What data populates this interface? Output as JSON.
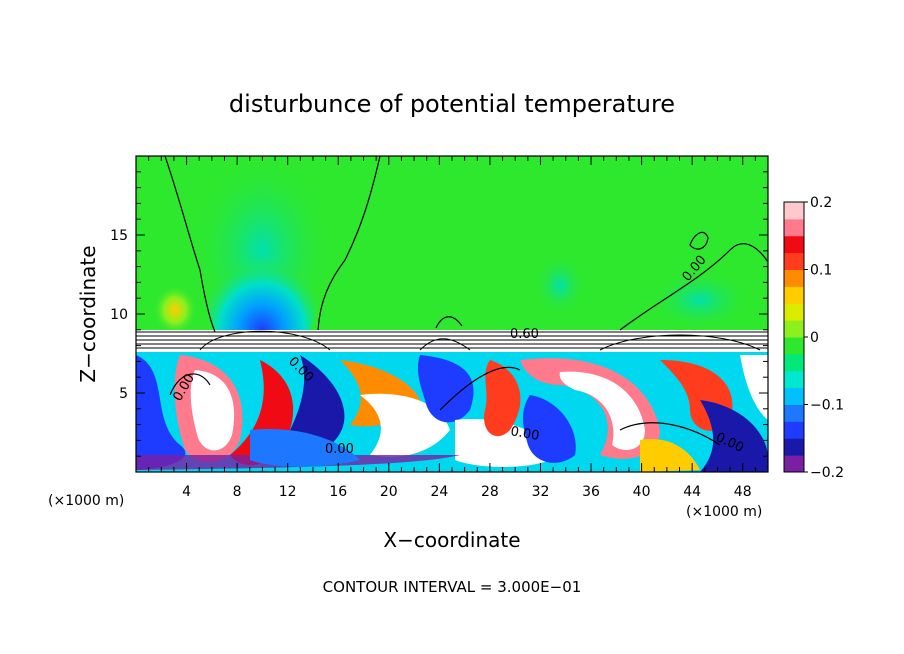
{
  "chart_data": {
    "type": "heatmap",
    "title": "disturbunce of potential temperature",
    "xlabel": "X−coordinate",
    "ylabel": "Z−coordinate",
    "x_unit_left": "(×1000 m)",
    "x_unit_right": "(×1000 m)",
    "x_ticks": [
      "4",
      "8",
      "12",
      "16",
      "20",
      "24",
      "28",
      "32",
      "36",
      "40",
      "44",
      "48"
    ],
    "y_ticks": [
      "5",
      "10",
      "15"
    ],
    "xlim": [
      0,
      50
    ],
    "ylim": [
      0,
      20
    ],
    "colorbar": {
      "labels": [
        "0.2",
        "0.1",
        "0",
        "−0.1",
        "−0.2"
      ],
      "range": [
        -0.2,
        0.2
      ],
      "colors": [
        "#7a1fa2",
        "#1a18a8",
        "#1e3cff",
        "#1e78ff",
        "#00c0ff",
        "#00e8d0",
        "#00e878",
        "#2ee82e",
        "#8cf01e",
        "#dcec00",
        "#ffcc00",
        "#ff8c00",
        "#ff3c1e",
        "#f00a14",
        "#ff7a8c",
        "#ffc8cc"
      ]
    },
    "contour_labels": [
      "0.00",
      "0.60",
      "0.00",
      "0.00",
      "0.00",
      "0.00",
      "0.00"
    ],
    "annotation": "CONTOUR INTERVAL = 3.000E−01"
  }
}
